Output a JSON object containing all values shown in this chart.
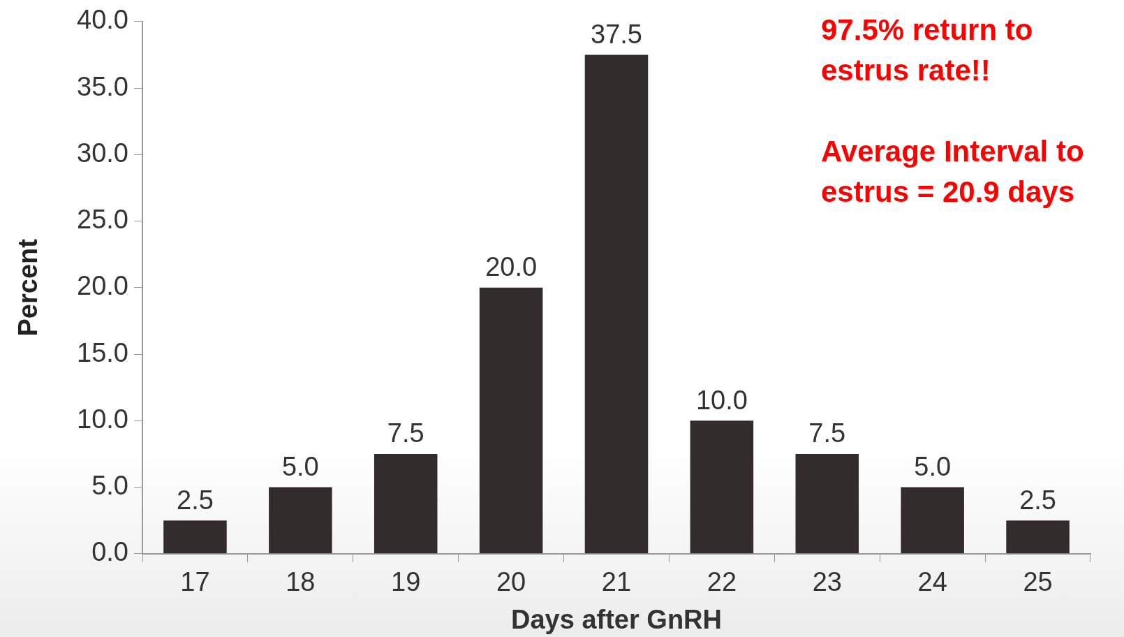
{
  "chart_data": {
    "type": "bar",
    "xlabel": "Days after GnRH",
    "ylabel": "Percent",
    "categories": [
      "17",
      "18",
      "19",
      "20",
      "21",
      "22",
      "23",
      "24",
      "25"
    ],
    "values": [
      2.5,
      5.0,
      7.5,
      20.0,
      37.5,
      10.0,
      7.5,
      5.0,
      2.5
    ],
    "value_labels": [
      "2.5",
      "5.0",
      "7.5",
      "20.0",
      "37.5",
      "10.0",
      "7.5",
      "5.0",
      "2.5"
    ],
    "color": "#332c2c",
    "ylim": [
      0,
      40
    ],
    "yticks": [
      {
        "value": 0,
        "label": "0.0"
      },
      {
        "value": 5,
        "label": "5.0"
      },
      {
        "value": 10,
        "label": "10.0"
      },
      {
        "value": 15,
        "label": "15.0"
      },
      {
        "value": 20,
        "label": "20.0"
      },
      {
        "value": 25,
        "label": "25.0"
      },
      {
        "value": 30,
        "label": "30.0"
      },
      {
        "value": 35,
        "label": "35.0"
      },
      {
        "value": 40,
        "label": "40.0"
      }
    ],
    "grid": false,
    "legend": false,
    "annotations": [
      "97.5% return to estrus rate!!",
      "Average Interval to estrus = 20.9 days"
    ]
  }
}
